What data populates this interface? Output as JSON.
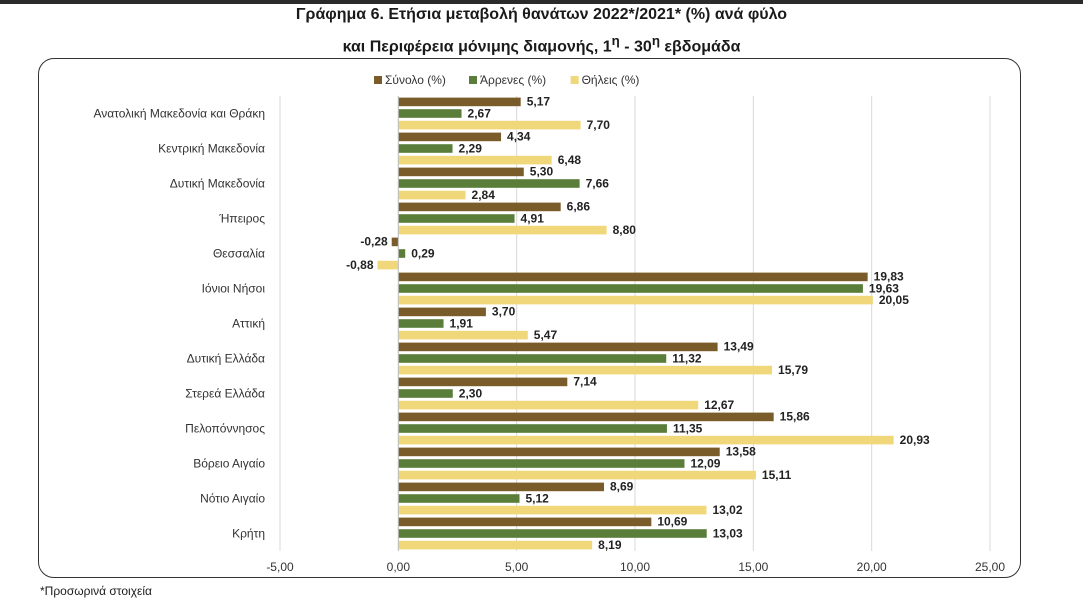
{
  "title_line1": "Γράφημα 6. Ετήσια μεταβολή θανάτων 2022*/2021* (%) ανά φύλο",
  "title_line2_main": "και Περιφέρεια μόνιμης διαμονής, 1",
  "title_line2_sup1": "η",
  "title_line2_mid": " - 30",
  "title_line2_sup2": "η",
  "title_line2_end": " εβδομάδα",
  "footnote": "*Προσωρινά στοιχεία",
  "colors": {
    "total": "#7a5c2a",
    "male": "#5a7d3a",
    "female": "#f0d77a"
  },
  "chart_data": {
    "type": "bar",
    "orientation": "horizontal",
    "categories": [
      "Ανατολική Μακεδονία και Θράκη",
      "Κεντρική Μακεδονία",
      "Δυτική Μακεδονία",
      "Ήπειρος",
      "Θεσσαλία",
      "Ιόνιοι Νήσοι",
      "Αττική",
      "Δυτική Ελλάδα",
      "Στερεά Ελλάδα",
      "Πελοπόννησος",
      "Βόρειο Αιγαίο",
      "Νότιο Αιγαίο",
      "Κρήτη"
    ],
    "series": [
      {
        "name": "Σύνολο (%)",
        "values": [
          5.17,
          4.34,
          5.3,
          6.86,
          -0.28,
          19.83,
          3.7,
          13.49,
          7.14,
          15.86,
          13.58,
          8.69,
          10.69
        ]
      },
      {
        "name": "Άρρενες (%)",
        "values": [
          2.67,
          2.29,
          7.66,
          4.91,
          0.29,
          19.63,
          1.91,
          11.32,
          2.3,
          11.35,
          12.09,
          5.12,
          13.03
        ]
      },
      {
        "name": "Θήλεις (%)",
        "values": [
          7.7,
          6.48,
          2.84,
          8.8,
          -0.88,
          20.05,
          5.47,
          15.79,
          12.67,
          20.93,
          15.11,
          13.02,
          8.19
        ]
      }
    ],
    "x_ticks": [
      "-5,00",
      "0,00",
      "5,00",
      "10,00",
      "15,00",
      "20,00",
      "25,00"
    ],
    "xlim": [
      -5,
      25
    ],
    "grid": true,
    "legend_position": "top"
  }
}
